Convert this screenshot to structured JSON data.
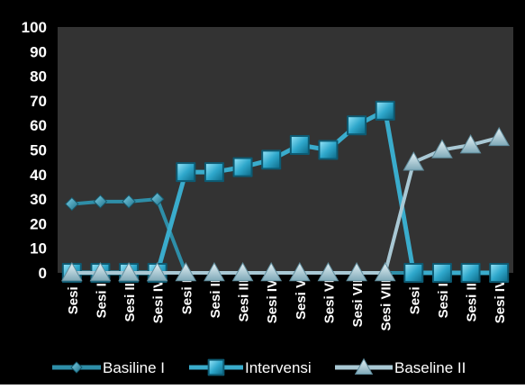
{
  "chart_data": {
    "type": "line",
    "categories": [
      "Sesi I",
      "Sesi II",
      "Sesi III",
      "Sesi IV",
      "Sesi I",
      "Sesi II",
      "Sesi III",
      "Sesi IV",
      "Sesi V",
      "Sesi VI",
      "Sesi VII",
      "Sesi VIII",
      "Sesi I",
      "Sesi II",
      "Sesi III",
      "Sesi IV"
    ],
    "ylim": [
      0,
      100
    ],
    "yticks": [
      0,
      10,
      20,
      30,
      40,
      50,
      60,
      70,
      80,
      90,
      100
    ],
    "ytick_labels": [
      "0",
      "10",
      "20",
      "30",
      "40",
      "50",
      "60",
      "70",
      "80",
      "90",
      "100"
    ],
    "grid": false,
    "legend_position": "bottom",
    "series": [
      {
        "name": "Basiline I",
        "marker": "diamond",
        "color": "#2e8ea8",
        "values": [
          28,
          29,
          29,
          30,
          0,
          0,
          0,
          0,
          0,
          0,
          0,
          0,
          0,
          0,
          0,
          0
        ]
      },
      {
        "name": "Intervensi",
        "marker": "square",
        "color": "#3aaccc",
        "values": [
          0,
          0,
          0,
          0,
          41,
          41,
          43,
          46,
          52,
          50,
          60,
          66,
          0,
          0,
          0,
          0
        ]
      },
      {
        "name": "Baseline II",
        "marker": "triangle",
        "color": "#a9c8d4",
        "values": [
          0,
          0,
          0,
          0,
          0,
          0,
          0,
          0,
          0,
          0,
          0,
          0,
          45,
          50,
          52,
          55
        ]
      }
    ],
    "colors": {
      "background": "#000000",
      "plot_area": "#333333",
      "text": "#ffffff"
    }
  }
}
